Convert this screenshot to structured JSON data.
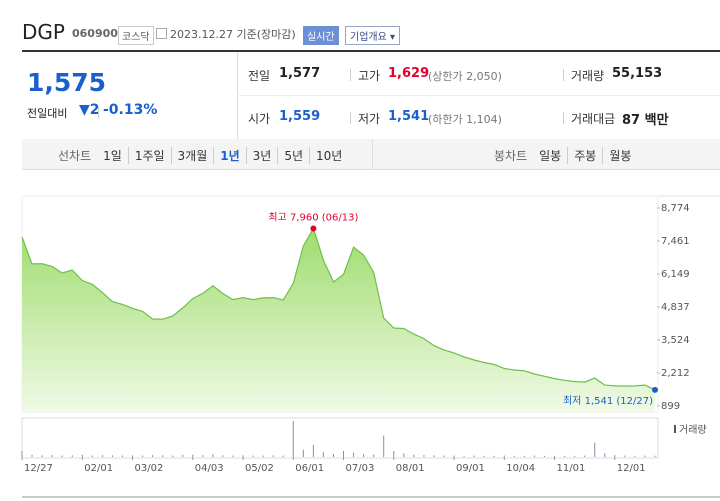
{
  "header": {
    "name": "DGP",
    "code": "060900",
    "market": "코스닥",
    "date": "2023.12.27 기준(장마감)",
    "realtime": "실시간",
    "company": "기업개요"
  },
  "quote": {
    "price": "1,575",
    "change_label": "전일대비",
    "change": "▼2",
    "change_pct": "-0.13%",
    "rows": [
      [
        {
          "label": "전일",
          "value": "1,577"
        },
        {
          "label": "고가",
          "value": "1,629",
          "note": "(상한가 2,050)"
        },
        {
          "label": "거래량",
          "value": "55,153"
        }
      ],
      [
        {
          "label": "시가",
          "value": "1,559"
        },
        {
          "label": "저가",
          "value": "1,541",
          "note": "(하한가 1,104)"
        },
        {
          "label": "거래대금",
          "value": "87 백만"
        }
      ]
    ]
  },
  "nav": {
    "line_label": "선차트",
    "periods": [
      "1일",
      "1주일",
      "3개월",
      "1년",
      "3년",
      "5년",
      "10년"
    ],
    "selected_period": 3,
    "candle_label": "봉차트",
    "candles": [
      "일봉",
      "주봉",
      "월봉"
    ]
  },
  "chart_data": {
    "type": "area",
    "color": "#6cc04a",
    "categories": [
      "12/27",
      null,
      null,
      null,
      null,
      null,
      "02/01",
      null,
      null,
      null,
      null,
      "03/02",
      null,
      null,
      null,
      null,
      null,
      "04/03",
      null,
      null,
      null,
      null,
      "05/02",
      null,
      null,
      null,
      null,
      "06/01",
      null,
      null,
      null,
      null,
      "07/03",
      null,
      null,
      null,
      null,
      "08/01",
      null,
      null,
      null,
      null,
      null,
      "09/01",
      null,
      null,
      null,
      null,
      "10/04",
      null,
      null,
      null,
      null,
      "11/01",
      null,
      null,
      null,
      null,
      null,
      "12/01",
      null,
      null,
      null,
      null
    ],
    "values": [
      7620,
      6550,
      6560,
      6450,
      6190,
      6310,
      5890,
      5740,
      5410,
      5050,
      4940,
      4780,
      4660,
      4360,
      4350,
      4480,
      4800,
      5170,
      5380,
      5680,
      5370,
      5130,
      5210,
      5130,
      5200,
      5210,
      5120,
      5780,
      7260,
      7960,
      6700,
      5830,
      6130,
      7220,
      6900,
      6210,
      4400,
      4000,
      3980,
      3760,
      3580,
      3300,
      3130,
      3010,
      2850,
      2730,
      2630,
      2550,
      2390,
      2330,
      2300,
      2170,
      2080,
      1990,
      1920,
      1870,
      1850,
      2010,
      1730,
      1700,
      1690,
      1700,
      1730,
      1541
    ],
    "volume": {
      "name": "거래량",
      "color": "#8a8aa8",
      "values": [
        250000,
        90000,
        70000,
        80000,
        60000,
        70000,
        90000,
        60000,
        80000,
        70000,
        60000,
        70000,
        60000,
        80000,
        70000,
        60000,
        90000,
        100000,
        80000,
        120000,
        70000,
        60000,
        70000,
        60000,
        60000,
        70000,
        60000,
        1500000,
        300000,
        500000,
        200000,
        120000,
        250000,
        180000,
        120000,
        100000,
        900000,
        250000,
        150000,
        100000,
        80000,
        70000,
        60000,
        60000,
        50000,
        60000,
        50000,
        50000,
        60000,
        50000,
        50000,
        60000,
        50000,
        50000,
        40000,
        50000,
        60000,
        600000,
        150000,
        80000,
        60000,
        50000,
        60000,
        55153
      ]
    },
    "ylim": [
      899,
      8774
    ],
    "yticks": [
      899,
      {
        "value": 2212,
        "label": "2,212"
      },
      {
        "value": 3524,
        "label": "3,524"
      },
      {
        "value": 4837,
        "label": "4,837"
      },
      {
        "value": 6149,
        "label": "6,149"
      },
      {
        "value": 7461,
        "label": "7,461"
      },
      {
        "value": 8774,
        "label": "8,774"
      }
    ],
    "annotations": [
      {
        "text": "최고 7,960 (06/13)",
        "index": 29,
        "color": "#e4002b"
      },
      {
        "text": "최저 1,541 (12/27)",
        "index": 63,
        "color": "#1a5fcc"
      }
    ]
  }
}
